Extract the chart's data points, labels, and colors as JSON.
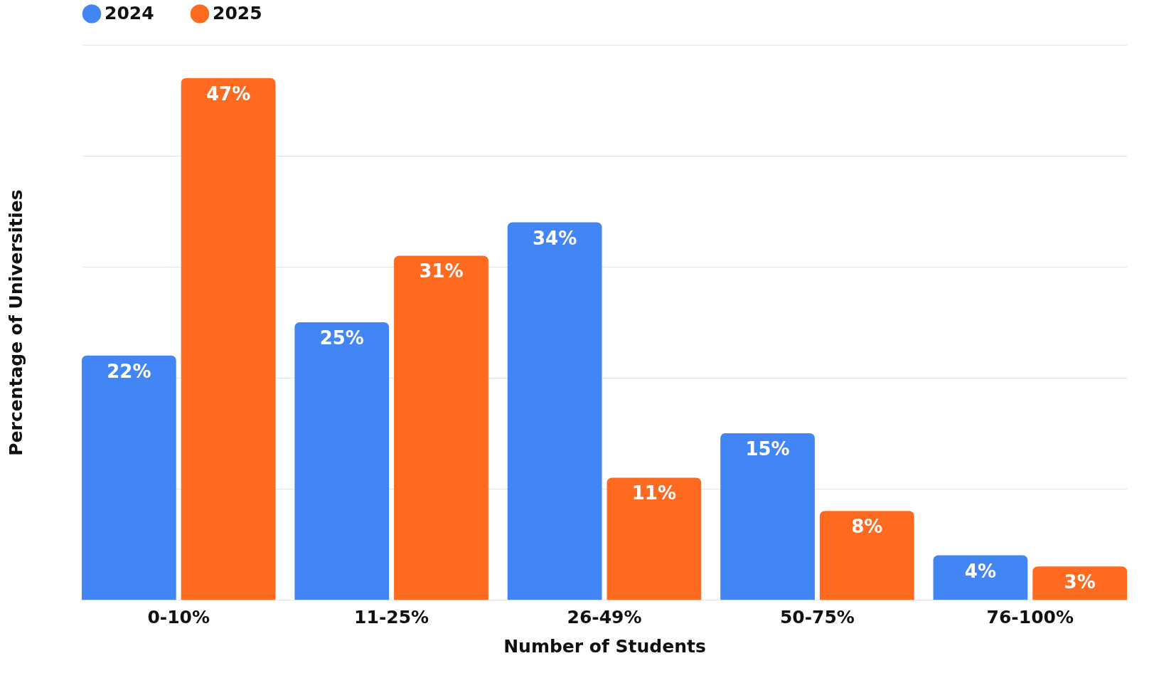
{
  "chart_data": {
    "type": "bar",
    "xlabel": "Number of Students",
    "ylabel": "Percentage of Universities",
    "categories": [
      "0-10%",
      "11-25%",
      "26-49%",
      "50-75%",
      "76-100%"
    ],
    "series": [
      {
        "name": "2024",
        "color": "#4285f4",
        "values": [
          22,
          25,
          34,
          15,
          4
        ],
        "value_labels": [
          "22%",
          "25%",
          "34%",
          "15%",
          "4%"
        ]
      },
      {
        "name": "2025",
        "color": "#fd6a20",
        "values": [
          47,
          31,
          11,
          8,
          3
        ],
        "value_labels": [
          "47%",
          "31%",
          "11%",
          "8%",
          "3%"
        ]
      }
    ],
    "ylim": [
      0,
      50
    ],
    "yticks": [
      {
        "value": 0,
        "label": null
      },
      {
        "value": 10,
        "label": null
      },
      {
        "value": 20,
        "label": null
      },
      {
        "value": 30,
        "label": null
      },
      {
        "value": 40,
        "label": null
      },
      {
        "value": 50,
        "label": null
      }
    ],
    "grid": "y",
    "legend": "top",
    "tick_labels": "x"
  }
}
